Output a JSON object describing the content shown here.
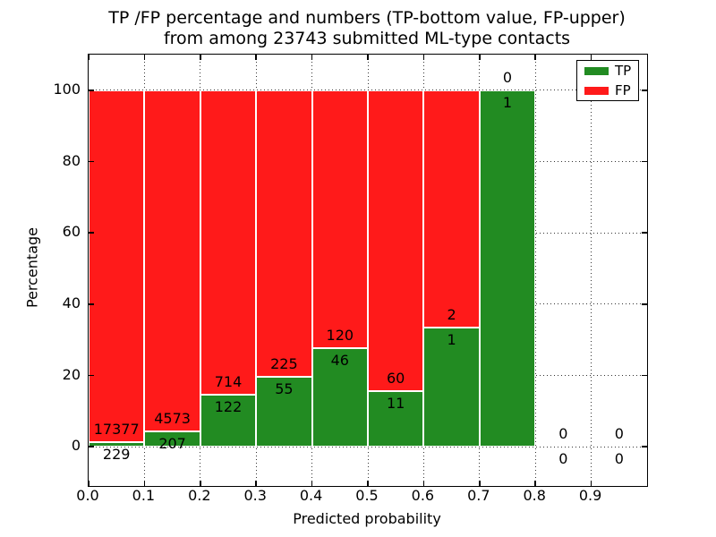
{
  "figure": {
    "title_line1": "TP /FP percentage and numbers (TP-bottom value, FP-upper)",
    "title_line2": "from among 23743 submitted ML-type contacts",
    "xlabel": "Predicted probability",
    "ylabel": "Percentage"
  },
  "legend": {
    "position": "upper right",
    "items": [
      {
        "label": "TP",
        "color": "#228b22"
      },
      {
        "label": "FP",
        "color": "#ff1a1a"
      }
    ]
  },
  "chart_data": {
    "type": "bar",
    "stacking": "percent",
    "title": "TP /FP percentage and numbers (TP-bottom value, FP-upper) from among 23743 submitted ML-type contacts",
    "total_contacts": 23743,
    "xlabel": "Predicted probability",
    "ylabel": "Percentage",
    "xlim": [
      0.0,
      1.0
    ],
    "ylim": [
      -11,
      110
    ],
    "grid": "dotted",
    "legend_position": "upper right",
    "bin_width": 0.1,
    "x_tick_values": [
      0.0,
      0.1,
      0.2,
      0.3,
      0.4,
      0.5,
      0.6,
      0.7,
      0.8,
      0.9
    ],
    "x_tick_labels": [
      "0.0",
      "0.1",
      "0.2",
      "0.3",
      "0.4",
      "0.5",
      "0.6",
      "0.7",
      "0.8",
      "0.9"
    ],
    "y_tick_values": [
      0,
      20,
      40,
      60,
      80,
      100
    ],
    "y_tick_labels": [
      "0",
      "20",
      "40",
      "60",
      "80",
      "100"
    ],
    "tp_color": "#228b22",
    "fp_color": "#ff1a1a",
    "series": [
      {
        "name": "TP",
        "color": "#228b22",
        "values": [
          229,
          207,
          122,
          55,
          46,
          11,
          1,
          1,
          0,
          0
        ]
      },
      {
        "name": "FP",
        "color": "#ff1a1a",
        "values": [
          17377,
          4573,
          714,
          225,
          120,
          60,
          2,
          0,
          0,
          0
        ]
      }
    ],
    "bins": [
      {
        "range": [
          0.0,
          0.1
        ],
        "tp": 229,
        "fp": 17377,
        "tp_pct": 1.3
      },
      {
        "range": [
          0.1,
          0.2
        ],
        "tp": 207,
        "fp": 4573,
        "tp_pct": 4.33
      },
      {
        "range": [
          0.2,
          0.3
        ],
        "tp": 122,
        "fp": 714,
        "tp_pct": 14.59
      },
      {
        "range": [
          0.3,
          0.4
        ],
        "tp": 55,
        "fp": 225,
        "tp_pct": 19.64
      },
      {
        "range": [
          0.4,
          0.5
        ],
        "tp": 46,
        "fp": 120,
        "tp_pct": 27.71
      },
      {
        "range": [
          0.5,
          0.6
        ],
        "tp": 11,
        "fp": 60,
        "tp_pct": 15.49
      },
      {
        "range": [
          0.6,
          0.7
        ],
        "tp": 1,
        "fp": 2,
        "tp_pct": 33.33
      },
      {
        "range": [
          0.7,
          0.8
        ],
        "tp": 1,
        "fp": 0,
        "tp_pct": 100.0
      },
      {
        "range": [
          0.8,
          0.9
        ],
        "tp": 0,
        "fp": 0,
        "tp_pct": 0.0
      },
      {
        "range": [
          0.9,
          1.0
        ],
        "tp": 0,
        "fp": 0,
        "tp_pct": 0.0
      }
    ]
  }
}
